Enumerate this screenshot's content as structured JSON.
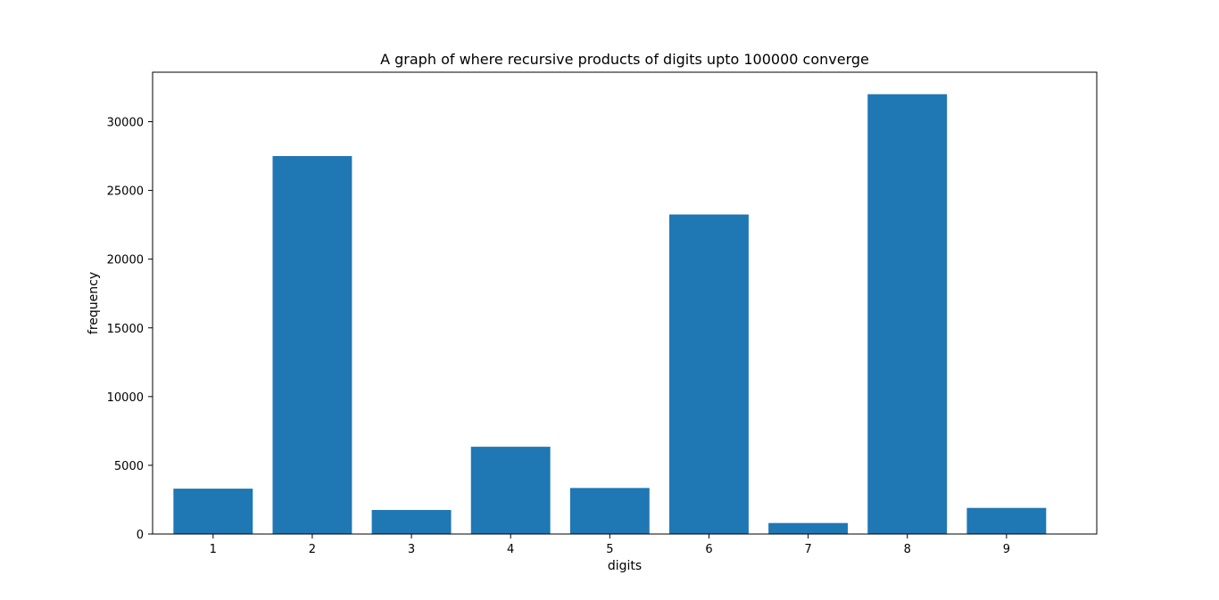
{
  "chart_data": {
    "type": "bar",
    "title": "A graph of where recursive products of digits upto 100000 converge",
    "xlabel": "digits",
    "ylabel": "frequency",
    "categories": [
      1,
      2,
      3,
      4,
      5,
      6,
      7,
      8,
      9
    ],
    "values": [
      3300,
      27500,
      1750,
      6350,
      3350,
      23250,
      800,
      32000,
      1900
    ],
    "ylim": [
      0,
      33600
    ],
    "yticks": [
      0,
      5000,
      10000,
      15000,
      20000,
      25000,
      30000
    ],
    "xlim": [
      0.39,
      9.91
    ],
    "bar_width": 0.8,
    "bar_color": "#1f77b4",
    "grid": false,
    "legend": "none"
  }
}
